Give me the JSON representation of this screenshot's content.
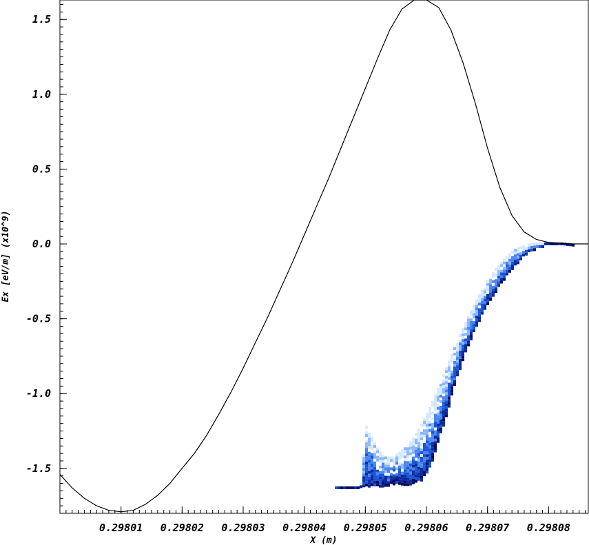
{
  "chart_data": {
    "type": "line",
    "title": "",
    "xlabel": "X (m)",
    "ylabel": "Ex [eV/m] (x10^9)",
    "xlim": [
      0.298,
      0.2980865
    ],
    "ylim": [
      -1.8,
      1.63
    ],
    "grid": false,
    "xticks": [
      "0.29801",
      "0.29802",
      "0.29803",
      "0.29804",
      "0.29805",
      "0.29806",
      "0.29807",
      "0.29808"
    ],
    "xtick_values": [
      0.29801,
      0.29802,
      0.29803,
      0.29804,
      0.29805,
      0.29806,
      0.29807,
      0.29808
    ],
    "yticks": [
      "1.5",
      "1.0",
      "0.5",
      "0.0",
      "-0.5",
      "-1.0",
      "-1.5"
    ],
    "ytick_values": [
      1.5,
      1.0,
      0.5,
      0.0,
      -0.5,
      -1.0,
      -1.5
    ],
    "series": [
      {
        "kind": "line",
        "color": "#000000",
        "x": [
          0.298,
          0.298002,
          0.298004,
          0.298006,
          0.298008,
          0.29801,
          0.298012,
          0.298014,
          0.298016,
          0.298018,
          0.29802,
          0.298022,
          0.298024,
          0.298026,
          0.298028,
          0.29803,
          0.298032,
          0.298034,
          0.298036,
          0.298038,
          0.29804,
          0.298042,
          0.298044,
          0.298046,
          0.298048,
          0.29805,
          0.298052,
          0.298054,
          0.298056,
          0.298058,
          0.29806,
          0.298062,
          0.298064,
          0.298066,
          0.298068,
          0.29807,
          0.298072,
          0.298074,
          0.298076,
          0.298078,
          0.29808,
          0.298082,
          0.298084,
          0.2980865
        ],
        "y": [
          -1.54,
          -1.63,
          -1.7,
          -1.75,
          -1.78,
          -1.79,
          -1.78,
          -1.74,
          -1.68,
          -1.6,
          -1.5,
          -1.4,
          -1.28,
          -1.14,
          -0.99,
          -0.83,
          -0.66,
          -0.49,
          -0.31,
          -0.13,
          0.06,
          0.25,
          0.44,
          0.64,
          0.84,
          1.04,
          1.24,
          1.43,
          1.57,
          1.63,
          1.64,
          1.58,
          1.43,
          1.21,
          0.94,
          0.64,
          0.38,
          0.19,
          0.08,
          0.03,
          0.01,
          0.005,
          0.0,
          0.0
        ]
      },
      {
        "kind": "density",
        "colors": [
          "#d6e8ff",
          "#8ab8ff",
          "#4a86f0",
          "#1a55d8",
          "#0a2a9a",
          "#050a60"
        ],
        "x": [
          0.298045,
          0.298047,
          0.298049,
          0.29805,
          0.298051,
          0.298052,
          0.298053,
          0.298054,
          0.298055,
          0.298056,
          0.298057,
          0.298058,
          0.298059,
          0.29806,
          0.298061,
          0.298062,
          0.298063,
          0.298064,
          0.298065,
          0.298066,
          0.298067,
          0.298068,
          0.298069,
          0.29807,
          0.298071,
          0.298072,
          0.298073,
          0.298074,
          0.298075,
          0.298076,
          0.298077,
          0.298078,
          0.298079,
          0.29808,
          0.298082,
          0.298084
        ],
        "y_low": [
          -1.62,
          -1.62,
          -1.62,
          -1.61,
          -1.61,
          -1.61,
          -1.61,
          -1.6,
          -1.6,
          -1.6,
          -1.6,
          -1.59,
          -1.57,
          -1.52,
          -1.42,
          -1.28,
          -1.15,
          -1.0,
          -0.86,
          -0.74,
          -0.64,
          -0.54,
          -0.46,
          -0.38,
          -0.32,
          -0.26,
          -0.2,
          -0.15,
          -0.11,
          -0.07,
          -0.04,
          -0.02,
          -0.01,
          0.0,
          0.0,
          0.0
        ],
        "y_high": [
          -1.62,
          -1.62,
          -1.62,
          -1.2,
          -1.3,
          -1.38,
          -1.42,
          -1.42,
          -1.4,
          -1.37,
          -1.33,
          -1.27,
          -1.2,
          -1.12,
          -1.03,
          -0.93,
          -0.83,
          -0.73,
          -0.63,
          -0.54,
          -0.45,
          -0.37,
          -0.3,
          -0.23,
          -0.17,
          -0.12,
          -0.08,
          -0.04,
          -0.02,
          -0.005,
          0.005,
          0.01,
          0.01,
          0.01,
          0.01,
          0.0
        ]
      }
    ]
  }
}
